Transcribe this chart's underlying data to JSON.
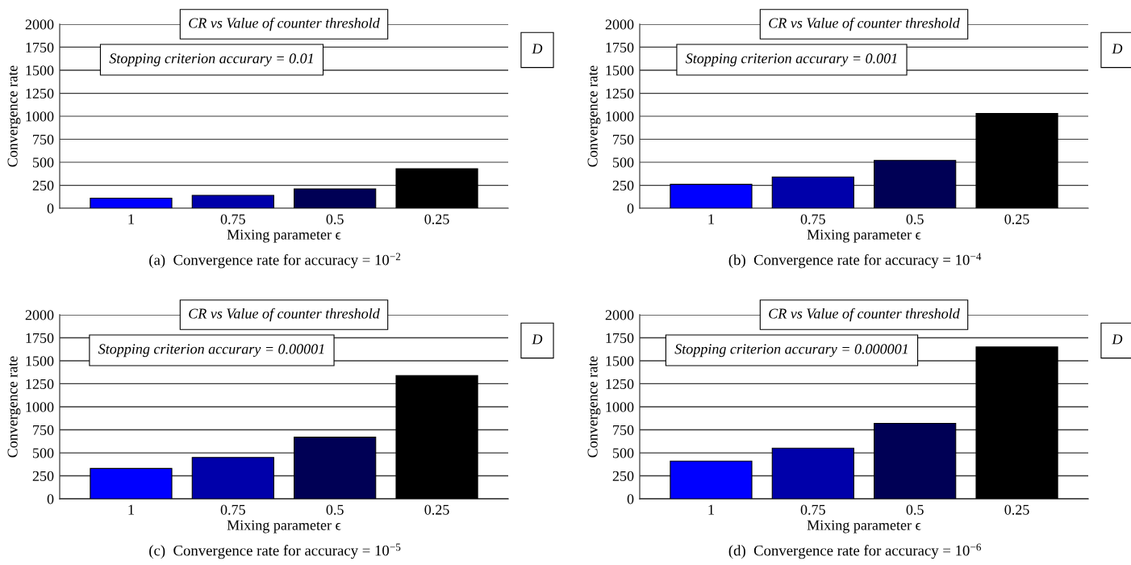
{
  "chart_data": [
    {
      "type": "bar",
      "title": "CR vs Value of counter threshold",
      "xlabel": "Mixing parameter ϵ",
      "ylabel": "Convergence rate",
      "categories": [
        "1",
        "0.75",
        "0.5",
        "0.25"
      ],
      "values": [
        110,
        140,
        210,
        430
      ],
      "colors": [
        "#0000ff",
        "#0000aa",
        "#000055",
        "#000000"
      ],
      "ylim": [
        0,
        2000
      ],
      "yticks": [
        0,
        250,
        500,
        750,
        1000,
        1250,
        1500,
        1750,
        2000
      ],
      "grid": "y",
      "annotations": [
        "Stopping criterion accurary = 0.01",
        "D",
        "(a)  Convergence rate for accuracy = 10$^{−2}$"
      ]
    },
    {
      "type": "bar",
      "title": "CR vs Value of counter threshold",
      "xlabel": "Mixing parameter ϵ",
      "ylabel": "Convergence rate",
      "categories": [
        "1",
        "0.75",
        "0.5",
        "0.25"
      ],
      "values": [
        260,
        340,
        520,
        1030
      ],
      "colors": [
        "#0000ff",
        "#0000aa",
        "#000055",
        "#000000"
      ],
      "ylim": [
        0,
        2000
      ],
      "yticks": [
        0,
        250,
        500,
        750,
        1000,
        1250,
        1500,
        1750,
        2000
      ],
      "grid": "y",
      "annotations": [
        "Stopping criterion accurary = 0.001",
        "D",
        "(b)  Convergence rate for accuracy = 10$^{−4}$"
      ]
    },
    {
      "type": "bar",
      "title": "CR vs Value of counter threshold",
      "xlabel": "Mixing parameter ϵ",
      "ylabel": "Convergence rate",
      "categories": [
        "1",
        "0.75",
        "0.5",
        "0.25"
      ],
      "values": [
        330,
        450,
        670,
        1340
      ],
      "colors": [
        "#0000ff",
        "#0000aa",
        "#000055",
        "#000000"
      ],
      "ylim": [
        0,
        2000
      ],
      "yticks": [
        0,
        250,
        500,
        750,
        1000,
        1250,
        1500,
        1750,
        2000
      ],
      "grid": "y",
      "annotations": [
        "Stopping criterion accurary = 0.00001",
        "D",
        "(c)  Convergence rate for accuracy = 10$^{−5}$"
      ]
    },
    {
      "type": "bar",
      "title": "CR vs Value of counter threshold",
      "xlabel": "Mixing parameter ϵ",
      "ylabel": "Convergence rate",
      "categories": [
        "1",
        "0.75",
        "0.5",
        "0.25"
      ],
      "values": [
        410,
        550,
        820,
        1650
      ],
      "colors": [
        "#0000ff",
        "#0000aa",
        "#000055",
        "#000000"
      ],
      "ylim": [
        0,
        2000
      ],
      "yticks": [
        0,
        250,
        500,
        750,
        1000,
        1250,
        1500,
        1750,
        2000
      ],
      "grid": "y",
      "annotations": [
        "Stopping criterion accurary = 0.000001",
        "D",
        "(d)  Convergence rate for accuracy = 10$^{−6}$"
      ]
    }
  ]
}
